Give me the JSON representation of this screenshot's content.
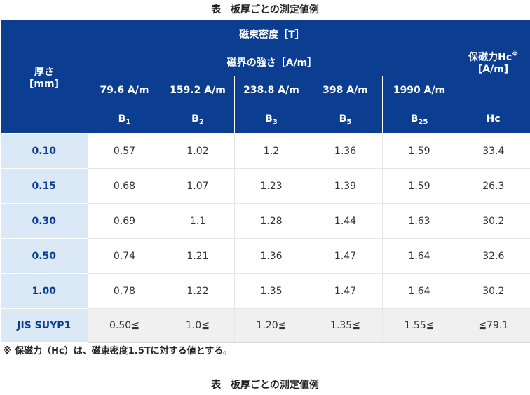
{
  "caption": "表　板厚ごとの測定値例",
  "header": {
    "thickness": "厚さ",
    "thickness_unit": "[mm]",
    "flux_density": "磁束密度［T］",
    "field_strength": "磁界の強さ［A/m］",
    "coercivity": "保磁力Hc",
    "coercivity_mark": "※",
    "coercivity_unit": "[A/m]",
    "fields": [
      "79.6 A/m",
      "159.2 A/m",
      "238.8 A/m",
      "398 A/m",
      "1990 A/m"
    ],
    "symbols": [
      {
        "base": "B",
        "sub": "1"
      },
      {
        "base": "B",
        "sub": "2"
      },
      {
        "base": "B",
        "sub": "3"
      },
      {
        "base": "B",
        "sub": "5"
      },
      {
        "base": "B",
        "sub": "25"
      }
    ],
    "hc_symbol": "Hc"
  },
  "rows": [
    {
      "thickness": "0.10",
      "values": [
        "0.57",
        "1.02",
        "1.2",
        "1.36",
        "1.59",
        "33.4"
      ]
    },
    {
      "thickness": "0.15",
      "values": [
        "0.68",
        "1.07",
        "1.23",
        "1.39",
        "1.59",
        "26.3"
      ]
    },
    {
      "thickness": "0.30",
      "values": [
        "0.69",
        "1.1",
        "1.28",
        "1.44",
        "1.63",
        "30.2"
      ]
    },
    {
      "thickness": "0.50",
      "values": [
        "0.74",
        "1.21",
        "1.36",
        "1.47",
        "1.64",
        "32.6"
      ]
    },
    {
      "thickness": "1.00",
      "values": [
        "0.78",
        "1.22",
        "1.35",
        "1.47",
        "1.64",
        "30.2"
      ]
    }
  ],
  "jis": {
    "label": "JIS SUYP1",
    "values": [
      "0.50≦",
      "1.0≦",
      "1.20≦",
      "1.35≦",
      "1.55≦",
      "≦79.1"
    ]
  },
  "note": "※ 保磁力（Hc）は、磁束密度1.5Tに対する値とする。",
  "next_caption": "表　板厚ごとの測定値例"
}
